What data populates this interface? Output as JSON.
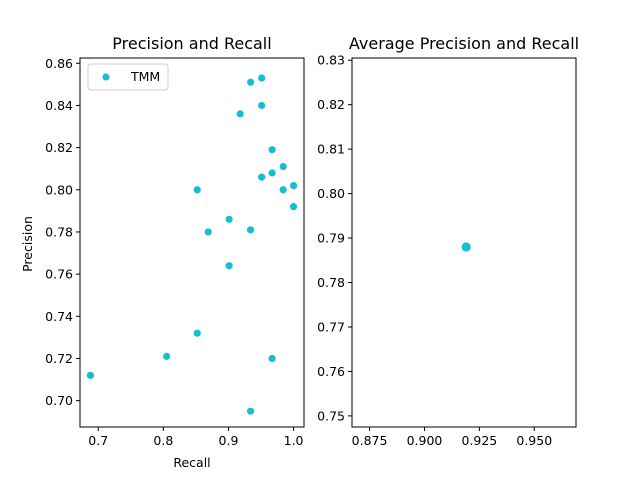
{
  "chart_data": [
    {
      "type": "scatter",
      "title": "Precision and Recall",
      "xlabel": "Recall",
      "ylabel": "Precision",
      "xlim": [
        0.672,
        1.016
      ],
      "ylim": [
        0.6875,
        0.8625
      ],
      "xticks": [
        0.7,
        0.8,
        0.9,
        1.0
      ],
      "xtick_labels": [
        "0.7",
        "0.8",
        "0.9",
        "1.0"
      ],
      "yticks": [
        0.7,
        0.72,
        0.74,
        0.76,
        0.78,
        0.8,
        0.82,
        0.84,
        0.86
      ],
      "ytick_labels": [
        "0.70",
        "0.72",
        "0.74",
        "0.76",
        "0.78",
        "0.80",
        "0.82",
        "0.84",
        "0.86"
      ],
      "legend": {
        "location": "upper left",
        "entries": [
          "TMM"
        ]
      },
      "grid": false,
      "color": "#17becf",
      "series": [
        {
          "name": "TMM",
          "points": [
            [
              0.688,
              0.712
            ],
            [
              0.805,
              0.721
            ],
            [
              0.852,
              0.732
            ],
            [
              0.852,
              0.8
            ],
            [
              0.869,
              0.78
            ],
            [
              0.901,
              0.786
            ],
            [
              0.901,
              0.764
            ],
            [
              0.918,
              0.836
            ],
            [
              0.934,
              0.851
            ],
            [
              0.934,
              0.781
            ],
            [
              0.934,
              0.695
            ],
            [
              0.951,
              0.853
            ],
            [
              0.951,
              0.84
            ],
            [
              0.951,
              0.806
            ],
            [
              0.967,
              0.819
            ],
            [
              0.967,
              0.808
            ],
            [
              0.967,
              0.72
            ],
            [
              0.984,
              0.811
            ],
            [
              0.984,
              0.8
            ],
            [
              1.0,
              0.802
            ],
            [
              1.0,
              0.792
            ]
          ]
        }
      ]
    },
    {
      "type": "scatter",
      "title": "Average Precision and Recall",
      "xlabel": "",
      "ylabel": "",
      "xlim": [
        0.867,
        0.969
      ],
      "ylim": [
        0.7475,
        0.8305
      ],
      "xticks": [
        0.875,
        0.9,
        0.925,
        0.95
      ],
      "xtick_labels": [
        "0.875",
        "0.900",
        "0.925",
        "0.950"
      ],
      "yticks": [
        0.75,
        0.76,
        0.77,
        0.78,
        0.79,
        0.8,
        0.81,
        0.82,
        0.83
      ],
      "ytick_labels": [
        "0.75",
        "0.76",
        "0.77",
        "0.78",
        "0.79",
        "0.80",
        "0.81",
        "0.82",
        "0.83"
      ],
      "grid": false,
      "color": "#17becf",
      "series": [
        {
          "points": [
            [
              0.919,
              0.788
            ]
          ]
        }
      ]
    }
  ]
}
